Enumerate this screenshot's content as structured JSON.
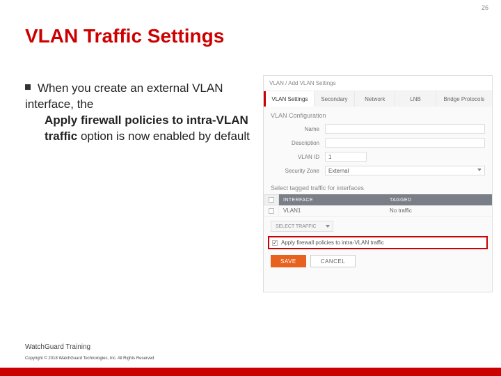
{
  "pageNumber": "26",
  "title": "VLAN Traffic Settings",
  "bullet": {
    "pre": "When you create an external VLAN interface, the ",
    "bold": "Apply firewall policies to intra-VLAN traffic",
    "post": " option is now enabled by default"
  },
  "screenshot": {
    "breadcrumb": "VLAN  /  Add VLAN Settings",
    "tabs": [
      "VLAN Settings",
      "Secondary",
      "Network",
      "LNB",
      "Bridge Protocols"
    ],
    "configHeading": "VLAN Configuration",
    "fields": {
      "nameLabel": "Name",
      "descLabel": "Description",
      "vlanIdLabel": "VLAN ID",
      "vlanIdValue": "1",
      "securityZoneLabel": "Security Zone",
      "securityZoneValue": "External"
    },
    "taggedHeading": "Select tagged traffic for interfaces",
    "ifaceHeader": {
      "col1": "INTERFACE",
      "col2": "TAGGED"
    },
    "ifaceRow": {
      "name": "VLAN1",
      "tagged": "No traffic"
    },
    "selectTraffic": "SELECT TRAFFIC",
    "applyLabel": "Apply firewall policies to intra-VLAN traffic",
    "saveLabel": "SAVE",
    "cancelLabel": "CANCEL"
  },
  "footer": {
    "training": "WatchGuard Training",
    "copyright": "Copyright © 2018 WatchGuard Technologies, Inc. All Rights Reserved"
  },
  "colors": {
    "brandRed": "#cc0000",
    "accentOrange": "#e8621f"
  }
}
